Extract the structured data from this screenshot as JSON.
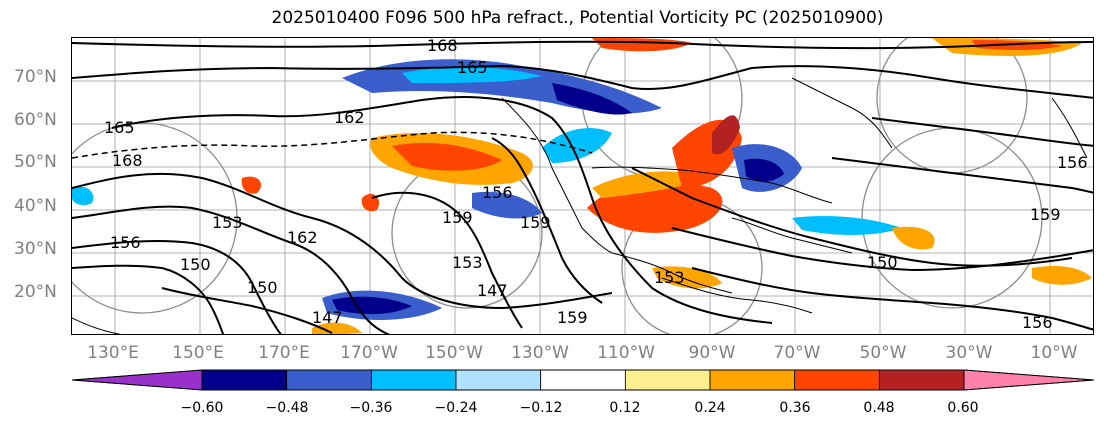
{
  "title": "2025010400 F096 500 hPa refract., Potential Vorticity PC (2025010900)",
  "lat_labels": [
    "70°N",
    "60°N",
    "50°N",
    "40°N",
    "30°N",
    "20°N"
  ],
  "lon_labels": [
    "130°E",
    "150°E",
    "170°E",
    "170°W",
    "150°W",
    "130°W",
    "110°W",
    "90°W",
    "70°W",
    "50°W",
    "30°W",
    "10°W"
  ],
  "contour_labels": [
    "168",
    "165",
    "162",
    "165",
    "168",
    "153",
    "156",
    "162",
    "150",
    "147",
    "150",
    "153",
    "159",
    "159",
    "156",
    "147",
    "153",
    "159",
    "150",
    "156",
    "159",
    "156"
  ],
  "colorbar": {
    "tick_labels": [
      "−0.60",
      "−0.48",
      "−0.36",
      "−0.24",
      "−0.12",
      "0.12",
      "0.24",
      "0.36",
      "0.48",
      "0.60"
    ],
    "colors": [
      "#9932cc",
      "#00008b",
      "#3a5fcd",
      "#00bfff",
      "#b0e2ff",
      "#ffffff",
      "#fff08f",
      "#ffa500",
      "#ff4500",
      "#b22222",
      "#ff82ab"
    ]
  }
}
